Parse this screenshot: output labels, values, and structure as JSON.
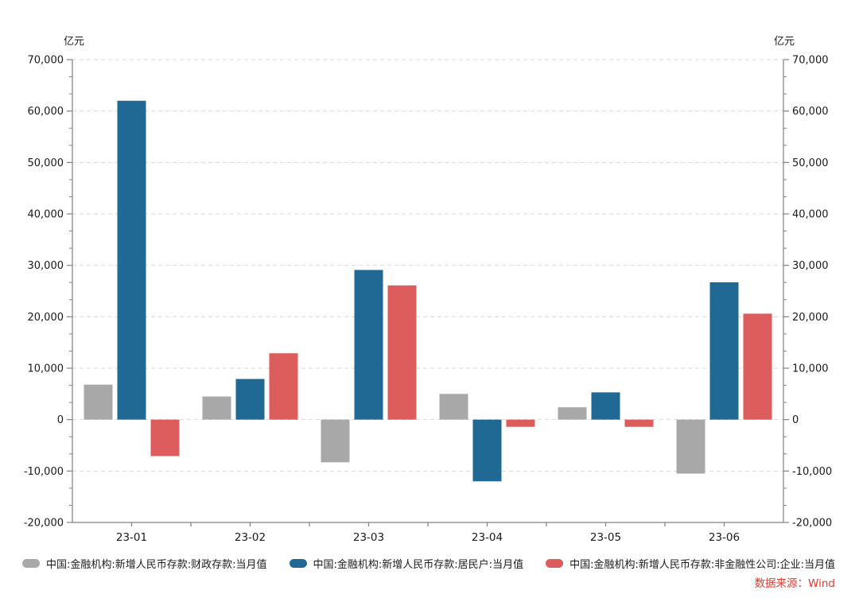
{
  "header": {
    "unit_left": "亿元",
    "unit_right": "亿元"
  },
  "source_note": "数据来源：Wind",
  "colors": {
    "axis": "#808080",
    "grid": "#d9d9d9",
    "tick_text": "#1a1a1a",
    "source_text": "#e8392d"
  },
  "chart_data": {
    "type": "bar",
    "title": "",
    "ylabel": "亿元",
    "categories": [
      "23-01",
      "23-02",
      "23-03",
      "23-04",
      "23-05",
      "23-06"
    ],
    "series": [
      {
        "name": "中国:金融机构:新增人民币存款:财政存款:当月值",
        "color": "#a8a8a8",
        "values": [
          6800,
          4500,
          -8300,
          5000,
          2400,
          -10500
        ]
      },
      {
        "name": "中国:金融机构:新增人民币存款:居民户:当月值",
        "color": "#1f6994",
        "values": [
          62000,
          7900,
          29100,
          -12000,
          5300,
          26700
        ]
      },
      {
        "name": "中国:金融机构:新增人民币存款:非金融性公司:企业:当月值",
        "color": "#dd5c5c",
        "values": [
          -7100,
          12900,
          26100,
          -1400,
          -1400,
          20600
        ]
      }
    ],
    "ylim": [
      -20000,
      70000
    ],
    "y_tick_step": 10000,
    "y_tick_labels_top_to_bottom": [
      "70,000",
      "60,000",
      "50,000",
      "40,000",
      "30,000",
      "20,000",
      "10,000",
      "0",
      "-10,000",
      "-20,000"
    ],
    "grid": "horizontal-dashed",
    "legend_position": "bottom",
    "dual_axis": true
  }
}
